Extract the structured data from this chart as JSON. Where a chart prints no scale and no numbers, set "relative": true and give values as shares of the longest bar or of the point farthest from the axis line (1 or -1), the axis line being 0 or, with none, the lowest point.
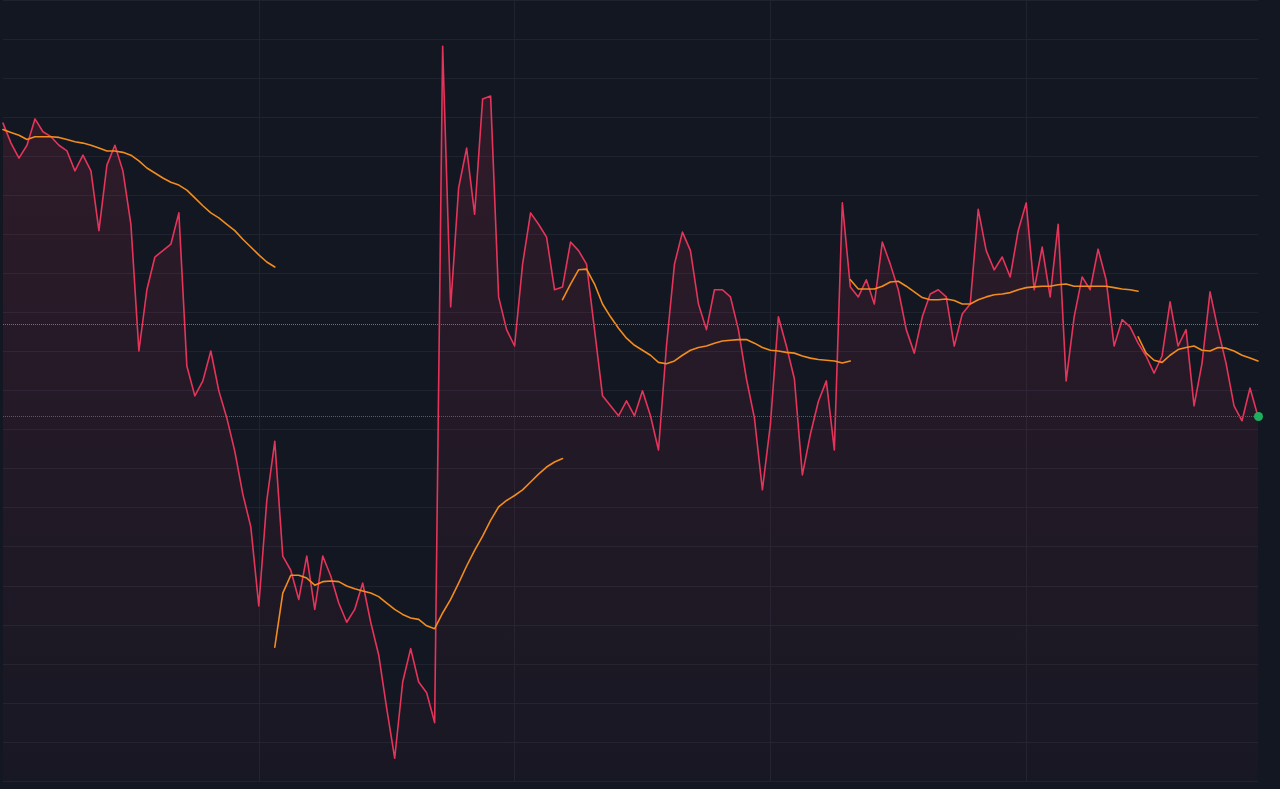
{
  "chart_data": {
    "type": "area",
    "relative": true,
    "grid": true,
    "marker": "none",
    "categories": [
      null,
      null,
      null,
      null,
      null,
      null,
      null,
      null,
      null,
      null,
      null,
      null,
      null,
      null,
      null,
      null,
      null,
      null,
      null,
      null,
      null,
      null,
      null,
      null,
      null,
      null,
      null,
      null,
      null,
      null,
      null,
      null,
      null,
      null,
      null,
      null,
      null,
      null,
      null,
      null,
      null,
      null,
      null,
      null,
      null,
      null,
      null,
      null,
      null,
      null,
      null,
      null,
      null,
      null,
      null,
      null,
      null,
      null,
      null,
      null,
      null,
      null,
      null,
      null,
      null,
      null,
      null,
      null,
      null,
      null,
      null,
      null,
      null,
      null,
      null,
      null,
      null,
      null,
      null,
      null,
      null,
      null,
      null,
      null,
      null,
      null,
      null,
      null,
      null,
      null,
      null,
      null,
      null,
      null,
      null,
      null,
      null,
      null,
      null,
      null,
      null,
      null,
      null,
      null,
      null,
      null,
      null,
      null,
      null,
      null,
      null,
      null,
      null,
      null,
      null,
      null,
      null,
      null,
      null,
      null,
      null,
      null,
      null,
      null,
      null,
      null,
      null,
      null,
      null,
      null,
      null,
      null,
      null,
      null,
      null,
      null,
      null,
      null,
      null,
      null,
      null,
      null,
      null,
      null,
      null,
      null,
      null,
      null,
      null,
      null,
      null,
      null,
      null,
      null,
      null,
      null,
      null,
      null
    ],
    "series": [
      {
        "color": "#e5345a",
        "values": [
          0.892,
          0.864,
          0.843,
          0.861,
          0.898,
          0.88,
          0.873,
          0.861,
          0.853,
          0.825,
          0.847,
          0.825,
          0.741,
          0.833,
          0.861,
          0.825,
          0.75,
          0.572,
          0.658,
          0.704,
          0.713,
          0.722,
          0.766,
          0.551,
          0.509,
          0.53,
          0.572,
          0.516,
          0.478,
          0.431,
          0.371,
          0.325,
          0.214,
          0.362,
          0.445,
          0.284,
          0.264,
          0.223,
          0.284,
          0.209,
          0.284,
          0.256,
          0.218,
          0.191,
          0.209,
          0.246,
          0.191,
          0.145,
          0.07,
          0,
          0.107,
          0.154,
          0.107,
          0.092,
          0.05,
          1,
          0.634,
          0.801,
          0.857,
          0.764,
          0.926,
          0.93,
          0.648,
          0.602,
          0.579,
          0.694,
          0.766,
          0.75,
          0.732,
          0.658,
          0.662,
          0.725,
          0.713,
          0.694,
          0.602,
          0.509,
          0.495,
          0.481,
          0.502,
          0.481,
          0.516,
          0.481,
          0.433,
          0.579,
          0.694,
          0.739,
          0.713,
          0.638,
          0.602,
          0.658,
          0.658,
          0.648,
          0.602,
          0.533,
          0.478,
          0.377,
          0.469,
          0.62,
          0.579,
          0.533,
          0.398,
          0.455,
          0.501,
          0.53,
          0.433,
          0.78,
          0.662,
          0.648,
          0.672,
          0.638,
          0.725,
          0.694,
          0.658,
          0.602,
          0.569,
          0.62,
          0.652,
          0.658,
          0.648,
          0.579,
          0.624,
          0.638,
          0.771,
          0.713,
          0.686,
          0.704,
          0.676,
          0.741,
          0.78,
          0.658,
          0.718,
          0.648,
          0.75,
          0.53,
          0.62,
          0.676,
          0.658,
          0.715,
          0.672,
          0.579,
          0.616,
          0.606,
          0.583,
          0.565,
          0.541,
          0.565,
          0.641,
          0.579,
          0.602,
          0.495,
          0.555,
          0.655,
          0.602,
          0.555,
          0.495,
          0.474,
          0.52,
          0.48
        ]
      },
      {
        "type": "line",
        "color": "#f28c1e",
        "values": [
          0.883,
          0.879,
          0.875,
          0.869,
          0.873,
          0.873,
          0.873,
          0.872,
          0.869,
          0.866,
          0.864,
          0.861,
          0.857,
          0.853,
          0.853,
          0.851,
          0.847,
          0.839,
          0.829,
          0.822,
          0.815,
          0.809,
          0.805,
          0.798,
          0.787,
          0.776,
          0.766,
          0.759,
          0.75,
          0.741,
          0.729,
          0.718,
          0.707,
          0.697,
          0.69,
          null,
          null,
          null,
          null,
          null,
          null,
          null,
          null,
          null,
          null,
          null,
          null,
          null,
          null,
          null,
          null,
          null,
          null,
          null,
          null,
          null,
          null,
          null,
          null,
          null,
          null,
          null,
          null,
          null,
          null,
          null,
          null,
          null,
          null,
          null,
          null,
          null,
          null,
          null,
          null,
          null,
          null,
          null,
          null,
          null,
          null,
          null,
          null,
          null,
          null,
          null,
          null,
          null,
          null,
          null,
          null,
          null,
          null,
          null,
          null,
          null,
          null,
          null,
          null,
          null,
          null,
          null,
          null,
          null,
          null,
          null,
          null,
          null,
          null,
          null,
          null,
          null,
          null,
          null,
          null,
          null,
          null,
          null,
          null,
          null,
          null,
          null,
          null,
          null,
          null,
          null,
          null,
          null,
          null,
          null,
          null,
          null,
          null,
          null,
          null,
          null,
          null,
          null,
          null,
          null,
          null,
          null,
          null,
          null,
          null,
          null,
          null,
          null,
          null,
          null,
          null,
          null,
          null,
          null,
          null,
          null,
          null,
          null
        ]
      },
      {
        "type": "line",
        "color": "#f28c1e",
        "values": [
          null,
          null,
          null,
          null,
          null,
          null,
          null,
          null,
          null,
          null,
          null,
          null,
          null,
          null,
          null,
          null,
          null,
          null,
          null,
          null,
          null,
          null,
          null,
          null,
          null,
          null,
          null,
          null,
          null,
          null,
          null,
          null,
          null,
          null,
          0.156,
          0.232,
          0.257,
          0.257,
          0.253,
          0.243,
          0.248,
          0.249,
          0.248,
          0.242,
          0.238,
          0.235,
          0.232,
          0.227,
          0.218,
          0.209,
          0.202,
          0.197,
          0.195,
          0.186,
          0.182,
          0.204,
          0.223,
          0.246,
          0.27,
          0.292,
          0.312,
          0.334,
          0.353,
          0.362,
          0.369,
          0.377,
          0.388,
          0.399,
          0.409,
          0.416,
          0.421,
          null,
          null,
          null,
          null,
          null,
          null,
          null,
          null,
          null,
          null,
          null,
          null,
          null,
          null,
          null,
          null,
          null,
          null,
          null,
          null,
          null,
          null,
          null,
          null,
          null,
          null,
          null,
          null,
          null,
          null,
          null,
          null,
          null,
          null,
          null,
          null,
          null,
          null,
          null,
          null,
          null,
          null,
          null,
          null,
          null,
          null,
          null,
          null,
          null,
          null,
          null,
          null,
          null,
          null,
          null,
          null,
          null,
          null,
          null,
          null,
          null,
          null,
          null,
          null,
          null,
          null,
          null,
          null,
          null,
          null,
          null,
          null,
          null,
          null,
          null,
          null,
          null,
          null,
          null,
          null,
          null,
          null,
          null,
          null,
          null,
          null,
          null
        ]
      },
      {
        "type": "line",
        "color": "#f28c1e",
        "values": [
          null,
          null,
          null,
          null,
          null,
          null,
          null,
          null,
          null,
          null,
          null,
          null,
          null,
          null,
          null,
          null,
          null,
          null,
          null,
          null,
          null,
          null,
          null,
          null,
          null,
          null,
          null,
          null,
          null,
          null,
          null,
          null,
          null,
          null,
          null,
          null,
          null,
          null,
          null,
          null,
          null,
          null,
          null,
          null,
          null,
          null,
          null,
          null,
          null,
          null,
          null,
          null,
          null,
          null,
          null,
          null,
          null,
          null,
          null,
          null,
          null,
          null,
          null,
          null,
          null,
          null,
          null,
          null,
          null,
          null,
          0.644,
          0.666,
          0.686,
          0.687,
          0.666,
          0.638,
          0.62,
          0.604,
          0.59,
          0.58,
          0.573,
          0.566,
          0.556,
          0.554,
          0.558,
          0.566,
          0.573,
          0.577,
          0.579,
          0.583,
          0.586,
          0.587,
          0.588,
          0.588,
          0.583,
          0.577,
          0.573,
          0.572,
          0.57,
          0.569,
          0.565,
          0.562,
          0.56,
          0.559,
          0.558,
          0.555,
          0.558,
          null,
          null,
          null,
          null,
          null,
          null,
          null,
          null,
          null,
          null,
          null,
          null,
          null,
          null,
          null,
          null,
          null,
          null,
          null,
          null,
          null,
          null,
          null,
          null,
          null,
          null,
          null,
          null,
          null,
          null,
          null,
          null,
          null,
          null,
          null,
          null,
          null,
          null,
          null,
          null,
          null,
          null,
          null,
          null,
          null,
          null,
          null,
          null,
          null,
          null,
          null
        ]
      },
      {
        "type": "line",
        "color": "#f28c1e",
        "values": [
          null,
          null,
          null,
          null,
          null,
          null,
          null,
          null,
          null,
          null,
          null,
          null,
          null,
          null,
          null,
          null,
          null,
          null,
          null,
          null,
          null,
          null,
          null,
          null,
          null,
          null,
          null,
          null,
          null,
          null,
          null,
          null,
          null,
          null,
          null,
          null,
          null,
          null,
          null,
          null,
          null,
          null,
          null,
          null,
          null,
          null,
          null,
          null,
          null,
          null,
          null,
          null,
          null,
          null,
          null,
          null,
          null,
          null,
          null,
          null,
          null,
          null,
          null,
          null,
          null,
          null,
          null,
          null,
          null,
          null,
          null,
          null,
          null,
          null,
          null,
          null,
          null,
          null,
          null,
          null,
          null,
          null,
          null,
          null,
          null,
          null,
          null,
          null,
          null,
          null,
          null,
          null,
          null,
          null,
          null,
          null,
          null,
          null,
          null,
          null,
          null,
          null,
          null,
          null,
          null,
          null,
          0.672,
          0.659,
          0.659,
          0.659,
          0.663,
          0.669,
          0.67,
          0.663,
          0.655,
          0.647,
          0.644,
          0.644,
          0.645,
          0.643,
          0.638,
          0.638,
          0.644,
          0.648,
          0.651,
          0.652,
          0.654,
          0.658,
          0.661,
          0.662,
          0.663,
          0.663,
          0.665,
          0.666,
          0.663,
          0.663,
          0.663,
          0.663,
          0.663,
          0.661,
          0.659,
          0.658,
          0.656,
          null,
          null,
          null,
          null,
          null,
          null,
          null,
          null,
          null,
          null,
          null,
          null,
          null,
          null,
          null
        ]
      },
      {
        "type": "line",
        "color": "#f28c1e",
        "values": [
          null,
          null,
          null,
          null,
          null,
          null,
          null,
          null,
          null,
          null,
          null,
          null,
          null,
          null,
          null,
          null,
          null,
          null,
          null,
          null,
          null,
          null,
          null,
          null,
          null,
          null,
          null,
          null,
          null,
          null,
          null,
          null,
          null,
          null,
          null,
          null,
          null,
          null,
          null,
          null,
          null,
          null,
          null,
          null,
          null,
          null,
          null,
          null,
          null,
          null,
          null,
          null,
          null,
          null,
          null,
          null,
          null,
          null,
          null,
          null,
          null,
          null,
          null,
          null,
          null,
          null,
          null,
          null,
          null,
          null,
          null,
          null,
          null,
          null,
          null,
          null,
          null,
          null,
          null,
          null,
          null,
          null,
          null,
          null,
          null,
          null,
          null,
          null,
          null,
          null,
          null,
          null,
          null,
          null,
          null,
          null,
          null,
          null,
          null,
          null,
          null,
          null,
          null,
          null,
          null,
          null,
          null,
          null,
          null,
          null,
          null,
          null,
          null,
          null,
          null,
          null,
          null,
          null,
          null,
          null,
          null,
          null,
          null,
          null,
          null,
          null,
          null,
          null,
          null,
          null,
          null,
          null,
          null,
          null,
          null,
          null,
          null,
          null,
          null,
          null,
          null,
          null,
          0.592,
          0.569,
          0.559,
          0.556,
          0.566,
          0.574,
          0.577,
          0.579,
          0.573,
          0.572,
          0.577,
          0.576,
          0.572,
          0.566,
          0.562,
          0.558
        ]
      }
    ],
    "ref_lines": [
      {
        "axis": "y",
        "value": 0.606,
        "color": "#6c707a",
        "line_style": "dotted"
      },
      {
        "axis": "y",
        "value": 0.48,
        "color": "#a8374c",
        "line_style": "dotted"
      }
    ]
  }
}
